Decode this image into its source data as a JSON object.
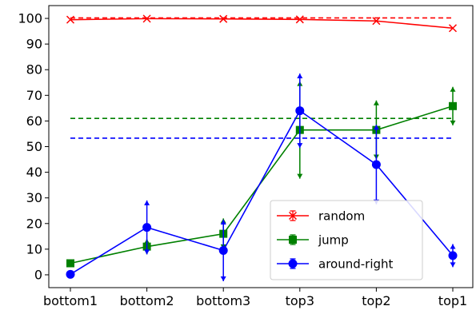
{
  "chart_data": {
    "type": "line",
    "categories": [
      "bottom1",
      "bottom2",
      "bottom3",
      "top3",
      "top2",
      "top1"
    ],
    "ylim": [
      -5,
      105
    ],
    "yticks": [
      0,
      10,
      20,
      30,
      40,
      50,
      60,
      70,
      80,
      90,
      100
    ],
    "grid": false,
    "legend_position": "lower-right",
    "series": [
      {
        "name": "random",
        "color": "#ff0000",
        "marker": "x",
        "values": [
          99.5,
          99.9,
          99.8,
          99.6,
          99.0,
          96.2
        ],
        "errors": [
          0.3,
          0.1,
          0.1,
          0.3,
          0.4,
          0.6
        ],
        "reference_line": 100.2
      },
      {
        "name": "jump",
        "color": "#008000",
        "marker": "square",
        "values": [
          4.5,
          11,
          16,
          56.5,
          56.5,
          65.8
        ],
        "errors": [
          1.5,
          3,
          6,
          19,
          11.5,
          7.5
        ],
        "reference_line": 61
      },
      {
        "name": "around-right",
        "color": "#0000ff",
        "marker": "circle",
        "values": [
          0.2,
          18.5,
          9.5,
          64,
          43,
          7.5
        ],
        "errors": [
          1.5,
          10.5,
          12,
          14.5,
          15.5,
          4.5
        ],
        "reference_line": 53.3
      }
    ]
  }
}
